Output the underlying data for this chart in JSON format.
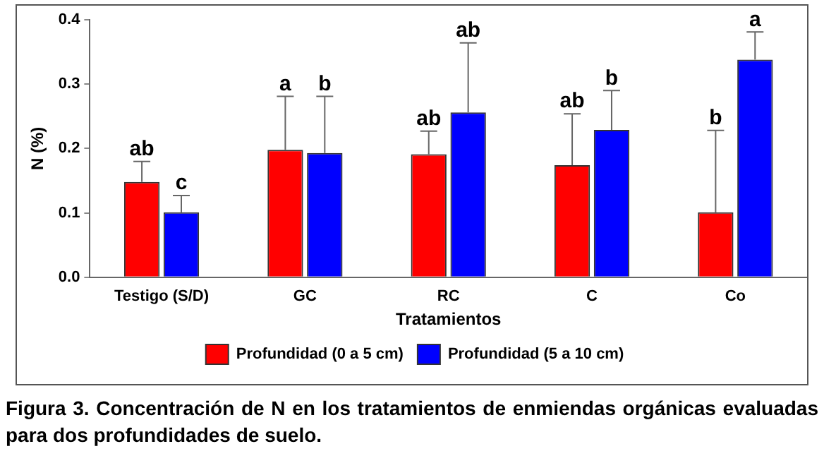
{
  "chart_data": {
    "type": "bar",
    "xlabel": "Tratamientos",
    "ylabel": "N (%)",
    "categories": [
      "Testigo (S/D)",
      "GC",
      "RC",
      "C",
      "Co"
    ],
    "series": [
      {
        "name": "Profundidad (0 a 5 cm)",
        "color": "#ff0000",
        "values": [
          0.148,
          0.198,
          0.191,
          0.174,
          0.101
        ],
        "errors": [
          [
            0.148,
            0.18
          ],
          [
            0.198,
            0.281
          ],
          [
            0.191,
            0.227
          ],
          [
            0.174,
            0.254
          ],
          [
            0.101,
            0.228
          ]
        ]
      },
      {
        "name": "Profundidad (5 a 10 cm)",
        "color": "#0000ff",
        "values": [
          0.101,
          0.193,
          0.256,
          0.229,
          0.338
        ],
        "errors": [
          [
            0.101,
            0.127
          ],
          [
            0.193,
            0.281
          ],
          [
            0.256,
            0.364
          ],
          [
            0.229,
            0.29
          ],
          [
            0.338,
            0.381
          ]
        ]
      }
    ],
    "ylim": [
      0,
      0.4
    ],
    "yticks": [
      {
        "value": 0,
        "label": "0.0"
      },
      0.1,
      0.2,
      0.3,
      0.4
    ],
    "grid": false,
    "legend": "bottom",
    "annotations": [
      "ab",
      "c",
      "a",
      "b",
      "ab",
      "ab",
      "ab",
      "b",
      "b",
      "a",
      "Figura 3. Concentración de N en los tratamientos de enmiendas orgánicas evaluadas para dos profundidades de suelo."
    ]
  }
}
